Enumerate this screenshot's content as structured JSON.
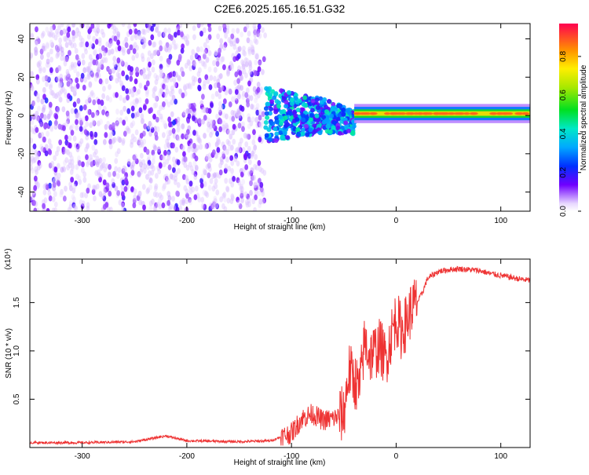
{
  "title": "C2E6.2025.165.16.51.G32",
  "colors": {
    "snr_line": "#ee3333",
    "spectrogram_low": "#7700ee",
    "spectrogram_high": "#ff2222"
  },
  "chart_data": [
    {
      "type": "heatmap",
      "xlabel": "Height of straight line (km)",
      "ylabel": "Frequency (Hz)",
      "xlim": [
        -350,
        128
      ],
      "ylim": [
        -50,
        48
      ],
      "x_ticks": [
        -300,
        -200,
        -100,
        0,
        100
      ],
      "y_ticks": [
        -40,
        -20,
        0,
        20,
        40
      ],
      "colorbar": {
        "label": "Normalized spectral amplitude",
        "range": [
          0,
          0.97
        ],
        "ticks": [
          0.0,
          0.2,
          0.4,
          0.6,
          0.8
        ],
        "colormap": "rainbow"
      },
      "features": [
        {
          "x_range": [
            -350,
            -125
          ],
          "freq_range": [
            -50,
            48
          ],
          "amplitude": 0.12
        },
        {
          "x_range": [
            -125,
            -40
          ],
          "freq_center": 0,
          "amplitude": 0.35
        },
        {
          "x_range": [
            -40,
            128
          ],
          "freq_center": 1,
          "amplitude": 0.9
        }
      ]
    },
    {
      "type": "line",
      "xlabel": "Height of straight line (km)",
      "ylabel": "SNR (10 * v/v)",
      "y_multiplier": "(x10⁴)",
      "xlim": [
        -350,
        128
      ],
      "ylim": [
        0,
        1.95
      ],
      "x_ticks": [
        -300,
        -200,
        -100,
        0,
        100
      ],
      "y_ticks": [
        0.5,
        1.0,
        1.5
      ],
      "series": [
        {
          "x": [
            -350,
            -300,
            -250,
            -220,
            -200,
            -150,
            -120,
            -100,
            -90,
            -80,
            -70,
            -60,
            -50,
            -45,
            -40,
            -35,
            -30,
            -25,
            -20,
            -15,
            -10,
            -5,
            0,
            5,
            10,
            15,
            20,
            25,
            30,
            40,
            50,
            60,
            70,
            80,
            90,
            100,
            110,
            120,
            128
          ],
          "y": [
            0.05,
            0.05,
            0.06,
            0.12,
            0.07,
            0.06,
            0.07,
            0.15,
            0.3,
            0.35,
            0.28,
            0.3,
            0.35,
            0.8,
            0.7,
            0.6,
            1.1,
            0.95,
            1.0,
            1.05,
            0.9,
            1.15,
            1.35,
            1.2,
            1.3,
            1.45,
            1.5,
            1.6,
            1.75,
            1.82,
            1.84,
            1.85,
            1.84,
            1.83,
            1.8,
            1.78,
            1.76,
            1.74,
            1.73
          ]
        }
      ]
    }
  ]
}
